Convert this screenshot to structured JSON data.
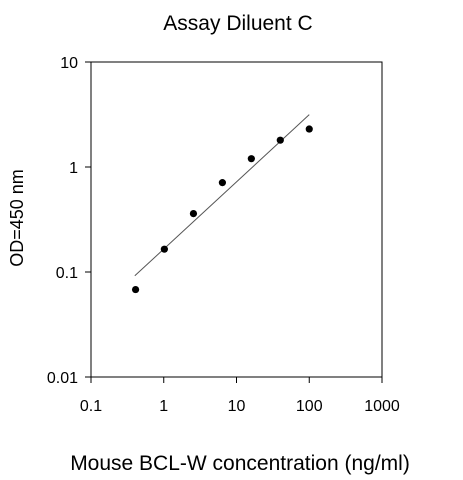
{
  "chart_data": {
    "type": "scatter",
    "title": "Assay Diluent C",
    "xlabel": "Mouse BCL-W concentration (ng/ml)",
    "ylabel": "OD=450 nm",
    "x_scale": "log",
    "y_scale": "log",
    "xlim": [
      0.1,
      1000
    ],
    "ylim": [
      0.01,
      10
    ],
    "x_ticks": [
      0.1,
      1,
      10,
      100,
      1000
    ],
    "x_tick_labels": [
      "0.1",
      "1",
      "10",
      "100",
      "1000"
    ],
    "y_ticks": [
      0.01,
      0.1,
      1,
      10
    ],
    "y_tick_labels": [
      "0.01",
      "0.1",
      "1",
      "10"
    ],
    "grid": false,
    "series": [
      {
        "x": [
          0.41,
          1.02,
          2.56,
          6.4,
          16,
          40,
          100
        ],
        "y": [
          0.068,
          0.165,
          0.36,
          0.71,
          1.2,
          1.8,
          2.3
        ]
      }
    ],
    "fit_line": {
      "x": [
        0.4,
        100
      ],
      "y": [
        0.092,
        3.15
      ]
    },
    "colors": {
      "points": "#000000",
      "fit_line": "#555555",
      "axes": "#000000"
    }
  }
}
